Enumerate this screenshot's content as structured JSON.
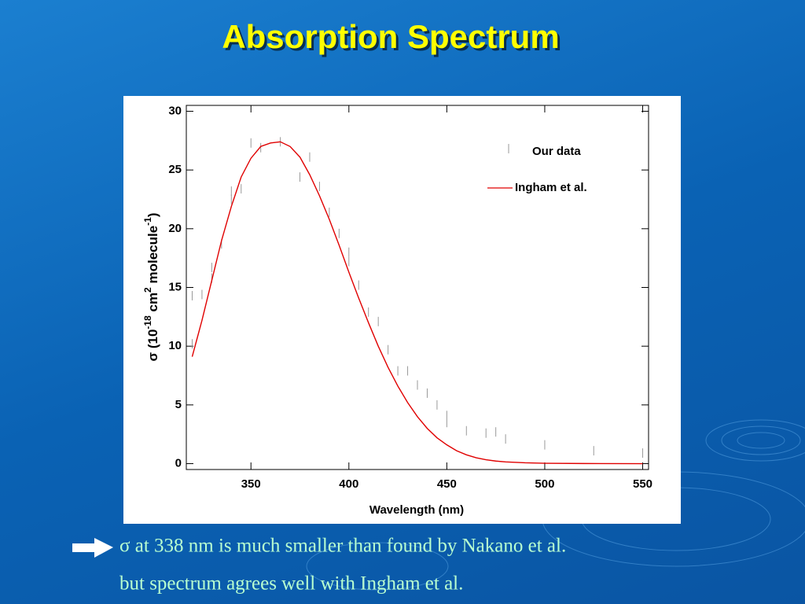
{
  "title": "Absorption Spectrum",
  "chart_data": {
    "type": "line",
    "xlabel": "Wavelength (nm)",
    "ylabel": [
      "σ (10",
      "-18",
      " cm",
      "2",
      " molecule",
      "-1",
      ")"
    ],
    "xlim": [
      317,
      553
    ],
    "ylim": [
      -0.5,
      30.5
    ],
    "xticks": [
      350,
      400,
      450,
      500,
      550
    ],
    "yticks": [
      0,
      5,
      10,
      15,
      20,
      25,
      30
    ],
    "series": [
      {
        "name": "Our data",
        "color": "#999999",
        "style": "errorbar",
        "x": [
          320,
          320,
          325,
          330,
          330,
          335,
          340,
          340,
          345,
          350,
          355,
          365,
          375,
          380,
          385,
          390,
          395,
          400,
          400,
          405,
          410,
          415,
          420,
          425,
          430,
          435,
          440,
          445,
          450,
          460,
          470,
          475,
          480,
          500,
          525,
          550
        ],
        "values": [
          14.3,
          10.2,
          14.4,
          16.7,
          15.8,
          18.7,
          23.2,
          22.5,
          23.4,
          27.3,
          26.9,
          27.4,
          24.4,
          26.1,
          23.6,
          21.4,
          19.6,
          18.0,
          17.2,
          15.2,
          12.9,
          12.1,
          9.7,
          7.9,
          7.9,
          6.7,
          6.0,
          5.0,
          3.8,
          2.8,
          2.6,
          2.7,
          2.1,
          1.6,
          1.1,
          0.9
        ],
        "errors": [
          0.4,
          0.4,
          0.4,
          0.4,
          0.4,
          0.4,
          0.4,
          0.4,
          0.4,
          0.4,
          0.4,
          0.4,
          0.4,
          0.4,
          0.4,
          0.4,
          0.4,
          0.4,
          0.4,
          0.4,
          0.4,
          0.4,
          0.4,
          0.4,
          0.4,
          0.4,
          0.4,
          0.4,
          0.7,
          0.4,
          0.4,
          0.4,
          0.4,
          0.4,
          0.4,
          0.4
        ]
      },
      {
        "name": "Ingham et al.",
        "color": "#e00000",
        "style": "line",
        "x": [
          320,
          325,
          330,
          335,
          340,
          345,
          350,
          355,
          360,
          365,
          370,
          375,
          380,
          385,
          390,
          395,
          400,
          405,
          410,
          415,
          420,
          425,
          430,
          435,
          440,
          445,
          450,
          455,
          460,
          465,
          470,
          475,
          480,
          490,
          500,
          520,
          550
        ],
        "values": [
          9.1,
          12.2,
          15.6,
          19.0,
          21.9,
          24.4,
          26.0,
          27.0,
          27.3,
          27.4,
          27.0,
          26.1,
          24.6,
          22.8,
          20.8,
          18.6,
          16.3,
          14.1,
          12.0,
          10.0,
          8.2,
          6.6,
          5.2,
          4.0,
          3.0,
          2.2,
          1.6,
          1.1,
          0.75,
          0.5,
          0.33,
          0.22,
          0.15,
          0.07,
          0.03,
          0.01,
          0.0
        ]
      }
    ]
  },
  "bullets": [
    "σ at 338 nm is much smaller than found by Nakano et al.",
    "but spectrum agrees well with Ingham et al."
  ]
}
